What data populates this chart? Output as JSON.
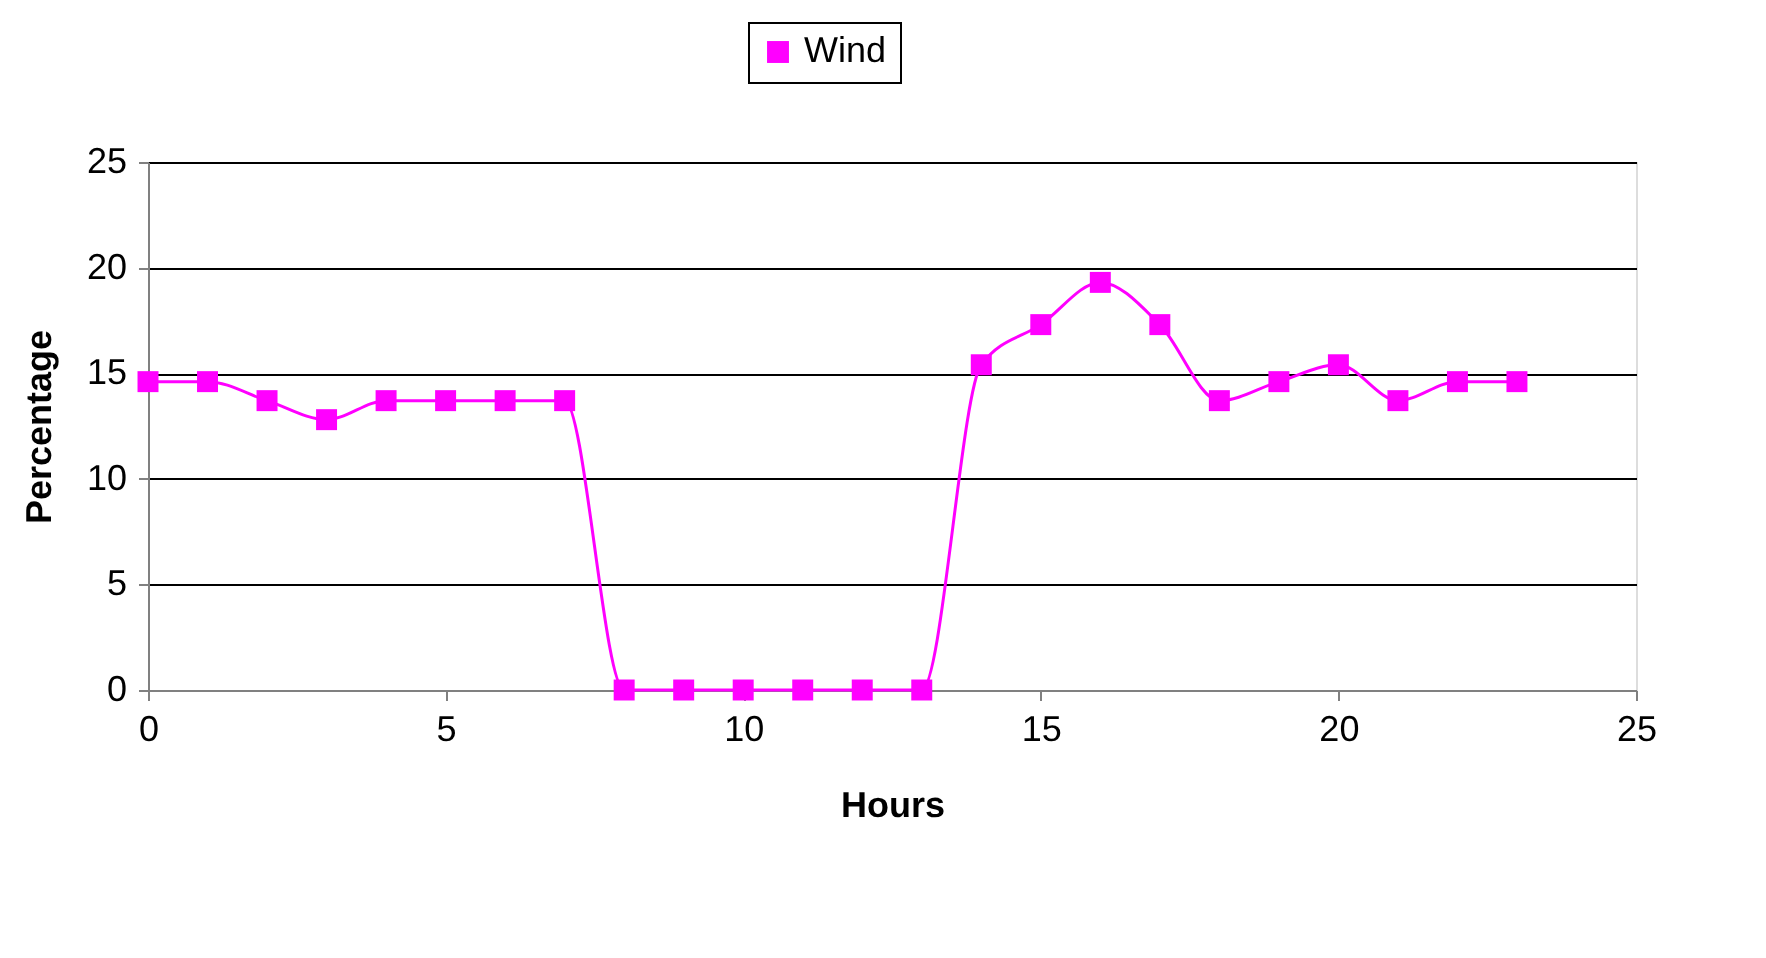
{
  "chart_data": {
    "type": "line",
    "xlabel": "Hours",
    "ylabel": "Percentage",
    "x": [
      0,
      1,
      2,
      3,
      4,
      5,
      6,
      7,
      8,
      9,
      10,
      11,
      12,
      13,
      14,
      15,
      16,
      17,
      18,
      19,
      20,
      21,
      22,
      23
    ],
    "series": [
      {
        "name": "Wind",
        "color": "#ff00ff",
        "values": [
          14.6,
          14.6,
          13.7,
          12.8,
          13.7,
          13.7,
          13.7,
          13.7,
          0,
          0,
          0,
          0,
          0,
          0,
          15.4,
          17.3,
          19.3,
          17.3,
          13.7,
          14.6,
          15.4,
          13.7,
          14.6,
          14.6
        ]
      }
    ],
    "xlim": [
      0,
      25
    ],
    "xticks": [
      0,
      5,
      10,
      15,
      20,
      25
    ],
    "ylim": [
      0,
      25
    ],
    "yticks": [
      0,
      5,
      10,
      15,
      20,
      25
    ],
    "grid": "y",
    "legend": "top",
    "marker": "square",
    "line_style": "solid"
  }
}
